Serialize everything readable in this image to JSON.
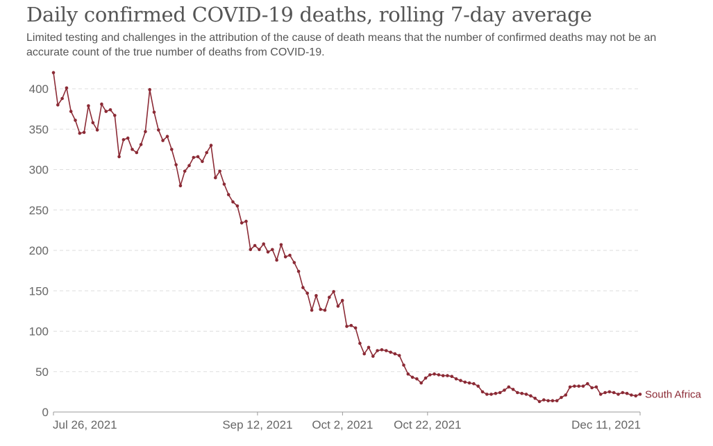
{
  "header": {
    "title": "Daily confirmed COVID-19 deaths, rolling 7-day average",
    "subtitle": "Limited testing and challenges in the attribution of the cause of death means that the number of confirmed deaths may not be an accurate count of the true number of deaths from COVID-19."
  },
  "colors": {
    "series": "#8b2a35",
    "grid": "#dddddd",
    "axis": "#999999",
    "text": "#555555"
  },
  "chart_data": {
    "type": "line",
    "title": "Daily confirmed COVID-19 deaths, rolling 7-day average",
    "subtitle": "Limited testing and challenges in the attribution of the cause of death means that the number of confirmed deaths may not be an accurate count of the true number of deaths from COVID-19.",
    "xlabel": "",
    "ylabel": "",
    "x_start": "2021-07-26",
    "x_end": "2021-12-11",
    "x_ticks": [
      {
        "date": "2021-07-26",
        "label": "Jul 26, 2021"
      },
      {
        "date": "2021-09-12",
        "label": "Sep 12, 2021"
      },
      {
        "date": "2021-10-02",
        "label": "Oct 2, 2021"
      },
      {
        "date": "2021-10-22",
        "label": "Oct 22, 2021"
      },
      {
        "date": "2021-12-11",
        "label": "Dec 11, 2021"
      }
    ],
    "y_ticks": [
      0,
      50,
      100,
      150,
      200,
      250,
      300,
      350,
      400
    ],
    "ylim": [
      0,
      420
    ],
    "grid": true,
    "legend": "end-of-line label",
    "series": [
      {
        "name": "South Africa",
        "values": [
          420,
          380,
          388,
          401,
          372,
          361,
          345,
          346,
          379,
          358,
          349,
          381,
          372,
          374,
          367,
          316,
          337,
          339,
          325,
          321,
          331,
          347,
          399,
          371,
          349,
          336,
          341,
          325,
          306,
          280,
          298,
          305,
          315,
          316,
          310,
          321,
          330,
          290,
          298,
          282,
          269,
          260,
          255,
          234,
          236,
          201,
          206,
          201,
          208,
          198,
          201,
          188,
          207,
          192,
          194,
          185,
          174,
          154,
          147,
          126,
          144,
          127,
          126,
          142,
          149,
          131,
          138,
          106,
          107,
          104,
          85,
          72,
          80,
          69,
          76,
          77,
          76,
          74,
          72,
          70,
          58,
          47,
          43,
          41,
          36,
          42,
          46,
          47,
          46,
          45,
          45,
          44,
          41,
          39,
          37,
          36,
          35,
          32,
          25,
          22,
          22,
          23,
          24,
          27,
          31,
          28,
          24,
          23,
          22,
          20,
          17,
          13,
          15,
          14,
          14,
          14,
          18,
          21,
          31,
          32,
          32,
          32,
          35,
          30,
          31,
          22,
          24,
          25,
          24,
          22,
          24,
          23,
          21,
          20,
          22
        ]
      }
    ]
  }
}
